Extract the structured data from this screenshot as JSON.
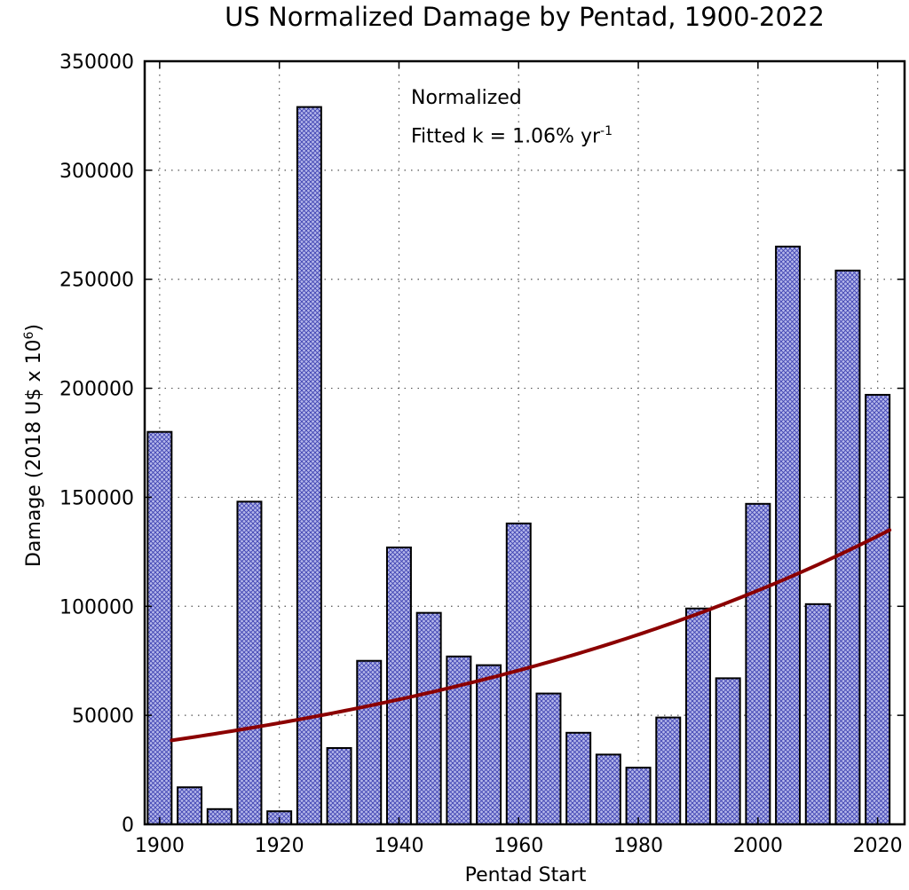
{
  "chart_data": {
    "type": "bar",
    "title": "US Normalized Damage by Pentad, 1900-2022",
    "xlabel": "Pentad Start",
    "ylabel_prefix": "Damage (2018 U$ x 10",
    "ylabel_exp": "6",
    "ylabel_suffix": ")",
    "xlim": [
      1897.5,
      2024.5
    ],
    "ylim": [
      0,
      350000
    ],
    "x_ticks": [
      1900,
      1920,
      1940,
      1960,
      1980,
      2000,
      2020
    ],
    "y_ticks": [
      0,
      50000,
      100000,
      150000,
      200000,
      250000,
      300000,
      350000
    ],
    "grid": true,
    "bar_width_years": 4,
    "bar_fill": "#a8abe3",
    "bar_edge": "#000000",
    "x": [
      1900,
      1905,
      1910,
      1915,
      1920,
      1925,
      1930,
      1935,
      1940,
      1945,
      1950,
      1955,
      1960,
      1965,
      1970,
      1975,
      1980,
      1985,
      1990,
      1995,
      2000,
      2005,
      2010,
      2015,
      2020
    ],
    "values": [
      180000,
      17000,
      7000,
      148000,
      6000,
      329000,
      35000,
      75000,
      127000,
      97000,
      77000,
      73000,
      138000,
      60000,
      42000,
      32000,
      26000,
      49000,
      99000,
      67000,
      147000,
      265000,
      101000,
      254000,
      197000
    ],
    "fit": {
      "name": "Fitted exponential",
      "color": "#8b0000",
      "k_percent_per_yr": 1.06,
      "x_start": 1902,
      "x_end": 2022,
      "y_start": 38500,
      "y_end": 135000
    },
    "annotations": {
      "line1": "Normalized",
      "line2_prefix": "Fitted k =  1.06% yr",
      "line2_exp": "-1"
    }
  }
}
